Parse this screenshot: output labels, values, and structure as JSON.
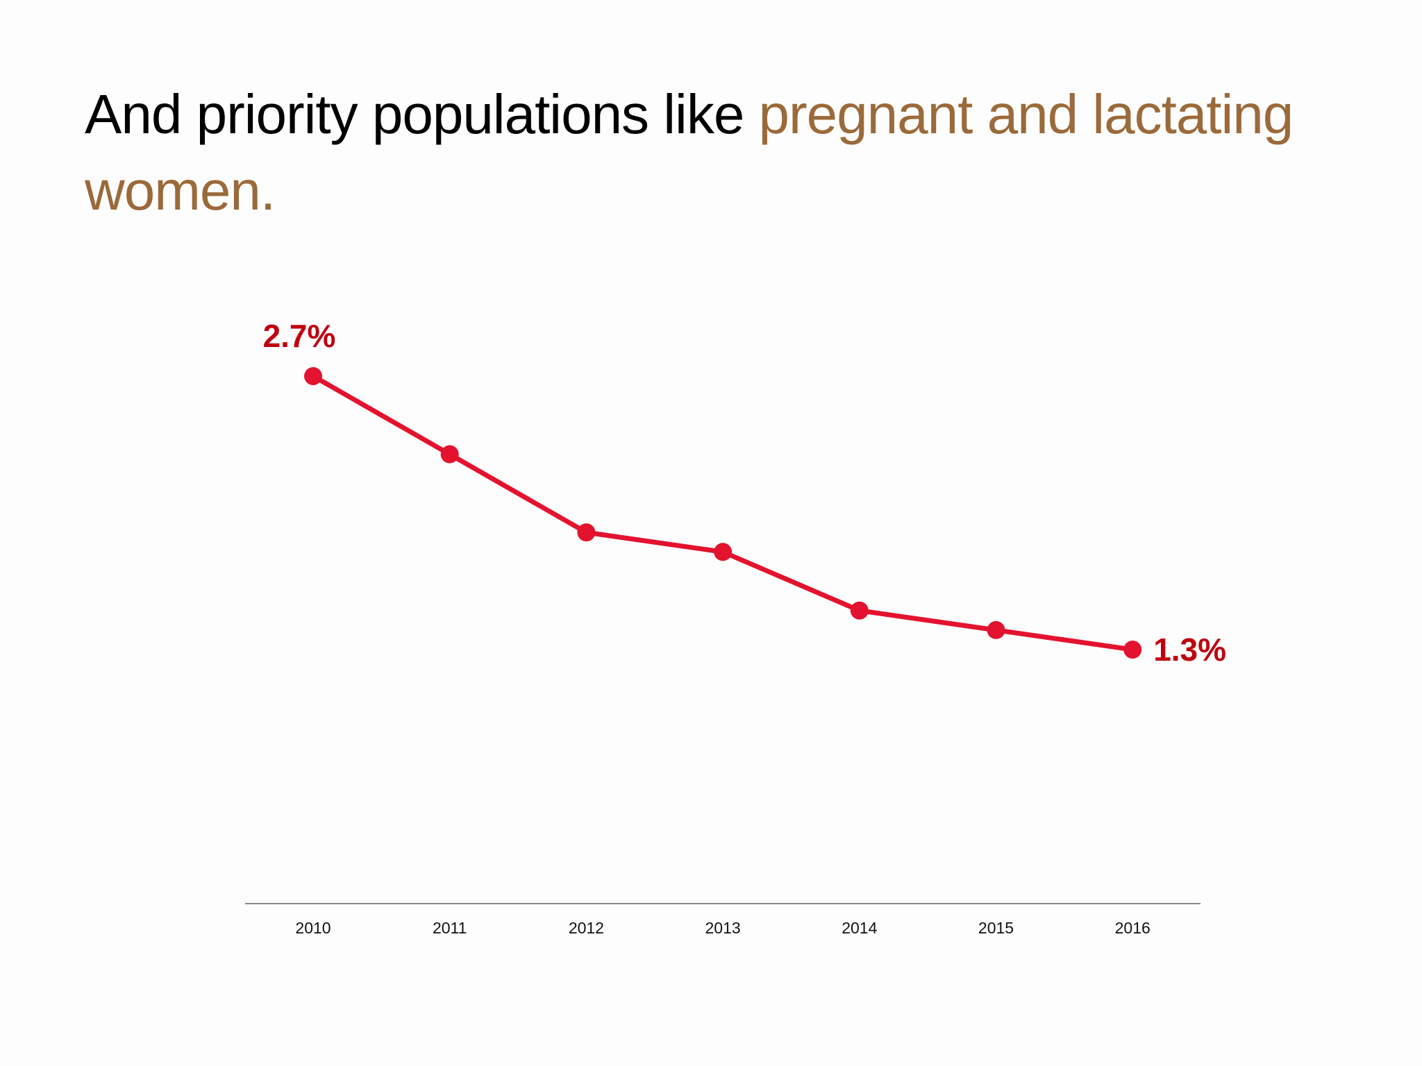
{
  "title": {
    "plain": "And priority populations like ",
    "highlight": "pregnant and lactating women.",
    "highlight_color": "#9b6a3a"
  },
  "chart_data": {
    "type": "line",
    "title": "",
    "xlabel": "",
    "ylabel": "",
    "categories": [
      "2010",
      "2011",
      "2012",
      "2013",
      "2014",
      "2015",
      "2016"
    ],
    "series": [
      {
        "values": [
          2.7,
          2.3,
          1.9,
          1.8,
          1.5,
          1.4,
          1.3
        ],
        "color": "#e3132f"
      }
    ],
    "data_labels": [
      {
        "category": "2010",
        "text": "2.7%"
      },
      {
        "category": "2016",
        "text": "1.3%"
      }
    ],
    "label_color": "#c0000f",
    "ylim": [
      0,
      2.8
    ],
    "y_axis_visible": false,
    "grid": false,
    "legend": "none"
  }
}
